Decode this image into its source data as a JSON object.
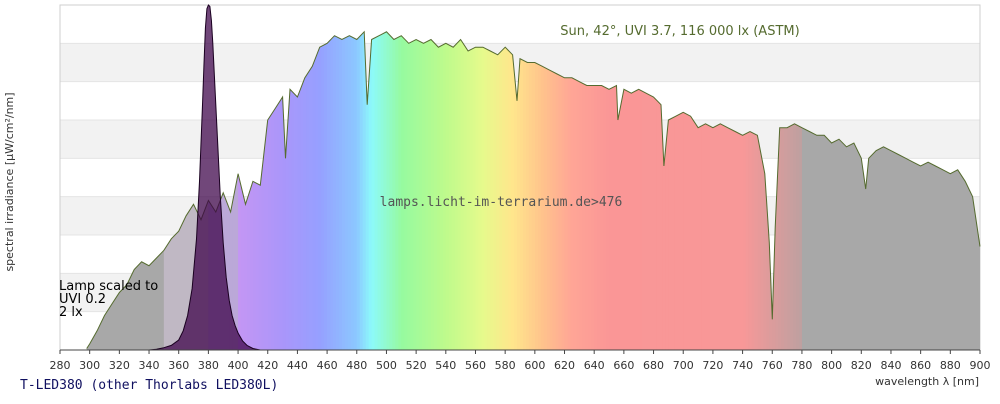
{
  "chart_data": {
    "type": "area",
    "title": "",
    "xlabel": "wavelength λ [nm]",
    "ylabel": "spectral irradiance [µW/cm²/nm]",
    "xlim": [
      280,
      900
    ],
    "ylim": [
      0,
      4.5
    ],
    "x_ticks": [
      280,
      300,
      320,
      340,
      360,
      380,
      400,
      420,
      440,
      460,
      480,
      500,
      520,
      540,
      560,
      580,
      600,
      620,
      640,
      660,
      680,
      700,
      720,
      740,
      760,
      780,
      800,
      820,
      840,
      860,
      880,
      900
    ],
    "grid": "horizontal bands",
    "annotations": {
      "sun_label": "Sun, 42°, UVI 3.7, 116 000 lx (ASTM)",
      "watermark": "lamps.licht-im-terrarium.de>476",
      "lamp_line1": "Lamp scaled to",
      "lamp_line2": "UVI 0.2",
      "lamp_line3": "2 lx"
    },
    "footer_title": "T-LED380 (other Thorlabs LED380L)",
    "series": [
      {
        "name": "Sun, 42°, UVI 3.7, 116 000 lx (ASTM)",
        "color": "#556b2f",
        "x": [
          298,
          300,
          305,
          310,
          315,
          320,
          325,
          330,
          335,
          340,
          345,
          350,
          355,
          360,
          365,
          370,
          375,
          380,
          385,
          390,
          395,
          400,
          405,
          410,
          415,
          420,
          425,
          430,
          432,
          435,
          440,
          445,
          450,
          455,
          460,
          465,
          470,
          475,
          480,
          485,
          487,
          490,
          495,
          500,
          505,
          510,
          515,
          520,
          525,
          530,
          535,
          540,
          545,
          550,
          555,
          560,
          565,
          570,
          575,
          580,
          585,
          588,
          590,
          595,
          600,
          605,
          610,
          615,
          620,
          625,
          630,
          635,
          640,
          645,
          650,
          655,
          656,
          660,
          665,
          670,
          675,
          680,
          685,
          687,
          690,
          695,
          700,
          705,
          710,
          715,
          720,
          725,
          730,
          735,
          740,
          745,
          750,
          755,
          758,
          760,
          762,
          765,
          770,
          775,
          780,
          785,
          790,
          795,
          800,
          805,
          810,
          815,
          820,
          823,
          825,
          830,
          835,
          840,
          845,
          850,
          855,
          860,
          865,
          870,
          875,
          880,
          885,
          890,
          895,
          900
        ],
        "y": [
          0.02,
          0.08,
          0.25,
          0.45,
          0.6,
          0.75,
          0.85,
          1.05,
          1.15,
          1.1,
          1.2,
          1.3,
          1.45,
          1.55,
          1.75,
          1.9,
          1.7,
          1.95,
          1.8,
          2.05,
          1.8,
          2.3,
          1.9,
          2.2,
          2.15,
          3.0,
          3.15,
          3.3,
          2.5,
          3.4,
          3.3,
          3.55,
          3.7,
          3.95,
          4.0,
          4.1,
          4.05,
          4.1,
          4.05,
          4.15,
          3.2,
          4.05,
          4.1,
          4.15,
          4.05,
          4.1,
          4.0,
          4.05,
          4.0,
          4.05,
          3.95,
          4.0,
          3.95,
          4.05,
          3.9,
          3.95,
          3.95,
          3.9,
          3.85,
          3.95,
          3.85,
          3.25,
          3.8,
          3.75,
          3.75,
          3.7,
          3.65,
          3.6,
          3.55,
          3.55,
          3.5,
          3.45,
          3.45,
          3.45,
          3.4,
          3.45,
          3.0,
          3.4,
          3.35,
          3.4,
          3.35,
          3.3,
          3.2,
          2.4,
          3.0,
          3.05,
          3.1,
          3.05,
          2.9,
          2.95,
          2.9,
          2.95,
          2.9,
          2.85,
          2.8,
          2.85,
          2.8,
          2.3,
          1.4,
          0.4,
          1.6,
          2.9,
          2.9,
          2.95,
          2.9,
          2.85,
          2.8,
          2.8,
          2.7,
          2.75,
          2.65,
          2.7,
          2.5,
          2.1,
          2.5,
          2.6,
          2.65,
          2.6,
          2.55,
          2.5,
          2.45,
          2.4,
          2.45,
          2.4,
          2.35,
          2.3,
          2.35,
          2.2,
          2.0,
          1.35
        ]
      },
      {
        "name": "Lamp scaled to UVI 0.2",
        "color": "#3a0046",
        "x": [
          340,
          345,
          350,
          355,
          360,
          363,
          366,
          369,
          372,
          374,
          376,
          377,
          378,
          379,
          380,
          381,
          382,
          383,
          384,
          386,
          388,
          390,
          392,
          394,
          396,
          398,
          400,
          403,
          406,
          410,
          415
        ],
        "y": [
          0.0,
          0.01,
          0.03,
          0.06,
          0.13,
          0.25,
          0.45,
          0.8,
          1.45,
          2.2,
          3.2,
          3.7,
          4.2,
          4.45,
          4.5,
          4.48,
          4.3,
          4.0,
          3.6,
          2.8,
          2.0,
          1.4,
          0.95,
          0.65,
          0.45,
          0.32,
          0.22,
          0.12,
          0.06,
          0.02,
          0.0
        ]
      }
    ]
  }
}
